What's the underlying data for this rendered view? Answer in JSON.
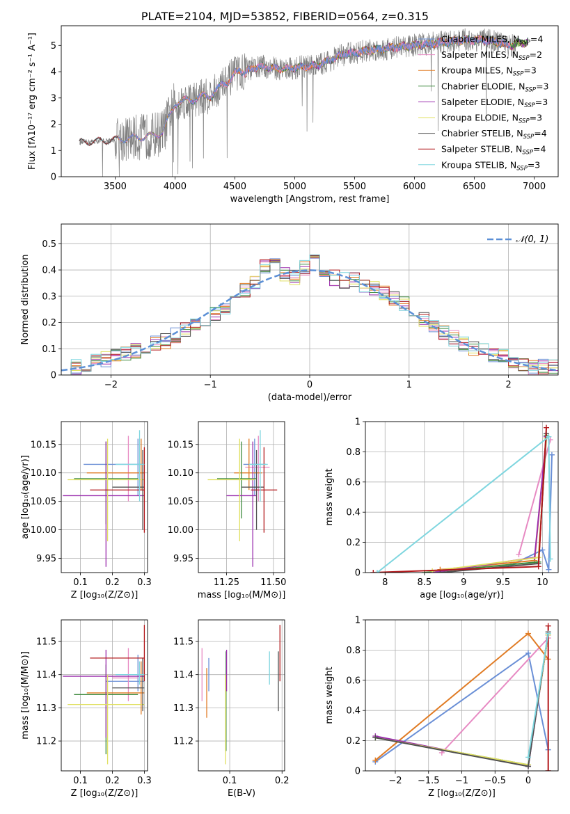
{
  "colors": {
    "Chabrier MILES": "#6a8fd6",
    "Salpeter MILES": "#e78ac3",
    "Kroupa MILES": "#e07b24",
    "Chabrier ELODIE": "#3d8a3d",
    "Salpeter ELODIE": "#9b2fae",
    "Kroupa ELODIE": "#e0e061",
    "Chabrier STELIB": "#505050",
    "Salpeter STELIB": "#b2181b",
    "Kroupa STELIB": "#7fd6df",
    "data": "#808080",
    "normal": "#5b8fd6",
    "grid": "#b0b0b0"
  },
  "chart_data": [
    {
      "id": "spectrum",
      "type": "line",
      "title": "PLATE=2104, MJD=53852, FIBERID=0564, z=0.315",
      "xlabel": "wavelength [Angstrom, rest frame]",
      "ylabel": "Flux [fλ10⁻¹⁷ erg cm⁻² s⁻¹ A⁻¹]",
      "xlim": [
        3050,
        7200
      ],
      "ylim": [
        0,
        5.75
      ],
      "xticks": [
        3500,
        4000,
        4500,
        5000,
        5500,
        6000,
        6500,
        7000
      ],
      "yticks": [
        0,
        1,
        2,
        3,
        4,
        5
      ],
      "grid": false,
      "legend_position": "top-right",
      "legend": [
        {
          "name": "Chabrier MILES",
          "nssp": "4"
        },
        {
          "name": "Salpeter MILES",
          "nssp": "2"
        },
        {
          "name": "Kroupa MILES",
          "nssp": "3"
        },
        {
          "name": "Chabrier ELODIE",
          "nssp": "3"
        },
        {
          "name": "Salpeter ELODIE",
          "nssp": "3"
        },
        {
          "name": "Kroupa ELODIE",
          "nssp": "3"
        },
        {
          "name": "Chabrier STELIB",
          "nssp": "4"
        },
        {
          "name": "Salpeter STELIB",
          "nssp": "4"
        },
        {
          "name": "Kroupa STELIB",
          "nssp": "3"
        }
      ],
      "continuum_x": [
        3200,
        3350,
        3500,
        3700,
        3800,
        3900,
        4000,
        4100,
        4300,
        4500,
        4700,
        4900,
        5000,
        5200,
        5400,
        5600,
        5800,
        6000,
        6200,
        6400,
        6600,
        6800,
        7000
      ],
      "continuum_y": [
        1.3,
        1.35,
        1.4,
        1.5,
        1.55,
        1.7,
        2.8,
        2.9,
        3.1,
        3.9,
        4.2,
        4.1,
        4.15,
        4.25,
        4.65,
        4.8,
        4.9,
        5.0,
        5.1,
        5.2,
        5.2,
        5.0,
        5.2
      ]
    },
    {
      "id": "residuals",
      "type": "line",
      "xlabel": "(data-model)/error",
      "ylabel": "Normed distribution",
      "xlim": [
        -2.5,
        2.5
      ],
      "ylim": [
        0,
        0.575
      ],
      "xticks": [
        -2,
        -1,
        0,
        1,
        2
      ],
      "yticks": [
        0.0,
        0.1,
        0.2,
        0.3,
        0.4,
        0.5
      ],
      "grid": true,
      "legend_position": "top-right",
      "legend": [
        "𝒩(0, 1)"
      ],
      "bin_centers": [
        -2.45,
        -2.35,
        -2.25,
        -2.15,
        -2.05,
        -1.95,
        -1.85,
        -1.75,
        -1.65,
        -1.55,
        -1.45,
        -1.35,
        -1.25,
        -1.15,
        -1.05,
        -0.95,
        -0.85,
        -0.75,
        -0.65,
        -0.55,
        -0.45,
        -0.35,
        -0.25,
        -0.15,
        -0.05,
        0.05,
        0.15,
        0.25,
        0.35,
        0.45,
        0.55,
        0.65,
        0.75,
        0.85,
        0.95,
        1.05,
        1.15,
        1.25,
        1.35,
        1.45,
        1.55,
        1.65,
        1.75,
        1.85,
        1.95,
        2.05,
        2.15,
        2.25,
        2.35,
        2.45
      ],
      "hist_values": [
        0.02,
        0.03,
        0.04,
        0.05,
        0.06,
        0.07,
        0.08,
        0.09,
        0.1,
        0.12,
        0.13,
        0.15,
        0.17,
        0.19,
        0.21,
        0.23,
        0.26,
        0.29,
        0.32,
        0.35,
        0.41,
        0.42,
        0.38,
        0.37,
        0.41,
        0.44,
        0.4,
        0.37,
        0.36,
        0.36,
        0.34,
        0.33,
        0.31,
        0.29,
        0.27,
        0.24,
        0.21,
        0.18,
        0.16,
        0.14,
        0.12,
        0.1,
        0.09,
        0.08,
        0.07,
        0.05,
        0.04,
        0.03,
        0.03,
        0.03
      ]
    },
    {
      "id": "age_vs_Z",
      "type": "scatter",
      "xlabel": "Z [log₁₀(Z/Z⊙)]",
      "ylabel": "age  [log₁₀(age/yr)]",
      "xlim": [
        0.04,
        0.31
      ],
      "ylim": [
        9.925,
        10.19
      ],
      "xticks": [
        0.1,
        0.2,
        0.3
      ],
      "yticks": [
        9.95,
        10.0,
        10.05,
        10.1,
        10.15
      ],
      "ytick_labels": [
        "9.95",
        "10.00",
        "10.05",
        "10.10",
        "10.15"
      ],
      "grid": true,
      "points": [
        {
          "name": "Chabrier MILES",
          "x": 0.28,
          "xerr": [
            0.11,
            0.3
          ],
          "y": 10.115,
          "yerr": [
            10.06,
            10.16
          ]
        },
        {
          "name": "Salpeter MILES",
          "x": 0.25,
          "xerr": [
            0.2,
            0.3
          ],
          "y": 10.1,
          "yerr": [
            10.05,
            10.165
          ]
        },
        {
          "name": "Kroupa MILES",
          "x": 0.29,
          "xerr": [
            0.12,
            0.3
          ],
          "y": 10.1,
          "yerr": [
            10.07,
            10.16
          ]
        },
        {
          "name": "Chabrier ELODIE",
          "x": 0.18,
          "xerr": [
            0.08,
            0.28
          ],
          "y": 10.09,
          "yerr": [
            10.01,
            10.155
          ]
        },
        {
          "name": "Salpeter ELODIE",
          "x": 0.18,
          "xerr": [
            0.045,
            0.3
          ],
          "y": 10.06,
          "yerr": [
            9.935,
            10.155
          ]
        },
        {
          "name": "Kroupa ELODIE",
          "x": 0.185,
          "xerr": [
            0.06,
            0.3
          ],
          "y": 10.088,
          "yerr": [
            9.98,
            10.16
          ]
        },
        {
          "name": "Chabrier STELIB",
          "x": 0.295,
          "xerr": [
            0.2,
            0.3
          ],
          "y": 10.075,
          "yerr": [
            10.0,
            10.14
          ]
        },
        {
          "name": "Salpeter STELIB",
          "x": 0.3,
          "xerr": [
            0.13,
            0.3
          ],
          "y": 10.07,
          "yerr": [
            9.995,
            10.145
          ]
        },
        {
          "name": "Kroupa STELIB",
          "x": 0.285,
          "xerr": [
            0.21,
            0.3
          ],
          "y": 10.115,
          "yerr": [
            10.05,
            10.175
          ]
        }
      ]
    },
    {
      "id": "age_vs_mass",
      "type": "scatter",
      "xlabel": "mass [log₁₀(M/M⊙)]",
      "xlim": [
        11.1,
        11.56
      ],
      "ylim": [
        9.925,
        10.19
      ],
      "xticks": [
        11.25,
        11.5
      ],
      "xtick_labels": [
        "11.25",
        "11.50"
      ],
      "yticks": [
        9.95,
        10.0,
        10.05,
        10.1,
        10.15
      ],
      "ytick_labels": [
        "9.95",
        "10.00",
        "10.05",
        "10.10",
        "10.15"
      ],
      "grid": true,
      "points": [
        {
          "name": "Chabrier MILES",
          "x": 11.4,
          "xerr": [
            11.34,
            11.46
          ],
          "y": 10.115,
          "yerr": [
            10.06,
            10.16
          ]
        },
        {
          "name": "Salpeter MILES",
          "x": 11.42,
          "xerr": [
            11.35,
            11.48
          ],
          "y": 10.11,
          "yerr": [
            10.05,
            10.165
          ]
        },
        {
          "name": "Kroupa MILES",
          "x": 11.37,
          "xerr": [
            11.29,
            11.44
          ],
          "y": 10.1,
          "yerr": [
            10.07,
            10.16
          ]
        },
        {
          "name": "Chabrier ELODIE",
          "x": 11.33,
          "xerr": [
            11.2,
            11.41
          ],
          "y": 10.09,
          "yerr": [
            10.02,
            10.155
          ]
        },
        {
          "name": "Salpeter ELODIE",
          "x": 11.39,
          "xerr": [
            11.25,
            11.41
          ],
          "y": 10.06,
          "yerr": [
            9.935,
            10.155
          ]
        },
        {
          "name": "Kroupa ELODIE",
          "x": 11.32,
          "xerr": [
            11.15,
            11.4
          ],
          "y": 10.088,
          "yerr": [
            9.98,
            10.16
          ]
        },
        {
          "name": "Chabrier STELIB",
          "x": 11.41,
          "xerr": [
            11.33,
            11.45
          ],
          "y": 10.075,
          "yerr": [
            10.0,
            10.14
          ]
        },
        {
          "name": "Salpeter STELIB",
          "x": 11.45,
          "xerr": [
            11.38,
            11.52
          ],
          "y": 10.07,
          "yerr": [
            9.995,
            10.145
          ]
        },
        {
          "name": "Kroupa STELIB",
          "x": 11.43,
          "xerr": [
            11.37,
            11.47
          ],
          "y": 10.115,
          "yerr": [
            10.05,
            10.175
          ]
        }
      ]
    },
    {
      "id": "mass_weight_vs_age",
      "type": "line",
      "xlabel": "age  [log₁₀(age/yr)]",
      "ylabel": "mass weight",
      "xlim": [
        7.75,
        10.2
      ],
      "ylim": [
        0,
        1.0
      ],
      "xticks": [
        8.0,
        8.5,
        9.0,
        9.5,
        10.0
      ],
      "yticks": [
        0.0,
        0.2,
        0.4,
        0.6,
        0.8,
        1.0
      ],
      "grid": true,
      "series": [
        {
          "name": "Chabrier MILES",
          "x": [
            9.6,
            10.0,
            10.08,
            10.12
          ],
          "y": [
            0.05,
            0.15,
            0.02,
            0.78
          ]
        },
        {
          "name": "Salpeter MILES",
          "x": [
            9.7,
            10.1
          ],
          "y": [
            0.12,
            0.88
          ]
        },
        {
          "name": "Kroupa MILES",
          "x": [
            8.7,
            9.9,
            10.05
          ],
          "y": [
            0.02,
            0.08,
            0.9
          ]
        },
        {
          "name": "Chabrier ELODIE",
          "x": [
            8.5,
            9.95,
            10.05
          ],
          "y": [
            0.0,
            0.07,
            0.91
          ]
        },
        {
          "name": "Salpeter ELODIE",
          "x": [
            8.6,
            9.9,
            10.05
          ],
          "y": [
            0.0,
            0.1,
            0.9
          ]
        },
        {
          "name": "Kroupa ELODIE",
          "x": [
            8.6,
            9.95,
            10.05
          ],
          "y": [
            0.01,
            0.1,
            0.89
          ]
        },
        {
          "name": "Chabrier STELIB",
          "x": [
            8.7,
            9.95,
            10.05
          ],
          "y": [
            0.0,
            0.06,
            0.92
          ]
        },
        {
          "name": "Salpeter STELIB",
          "x": [
            7.85,
            9.95,
            10.05
          ],
          "y": [
            0.0,
            0.04,
            0.96
          ]
        },
        {
          "name": "Kroupa STELIB",
          "x": [
            7.9,
            10.08,
            10.1
          ],
          "y": [
            0.0,
            0.9,
            0.09
          ]
        }
      ]
    },
    {
      "id": "mass_vs_Z",
      "type": "scatter",
      "xlabel": "Z [log₁₀(Z/Z⊙)]",
      "ylabel": "mass [log₁₀(M/M⊙)]",
      "xlim": [
        0.04,
        0.31
      ],
      "ylim": [
        11.11,
        11.565
      ],
      "xticks": [
        0.1,
        0.2,
        0.3
      ],
      "yticks": [
        11.2,
        11.3,
        11.4,
        11.5
      ],
      "grid": true,
      "points": [
        {
          "name": "Chabrier MILES",
          "x": 0.28,
          "xerr": [
            0.18,
            0.3
          ],
          "y": 11.38,
          "yerr": [
            11.35,
            11.46
          ]
        },
        {
          "name": "Salpeter MILES",
          "x": 0.25,
          "xerr": [
            0.2,
            0.28
          ],
          "y": 11.39,
          "yerr": [
            11.32,
            11.48
          ]
        },
        {
          "name": "Kroupa MILES",
          "x": 0.29,
          "xerr": [
            0.12,
            0.3
          ],
          "y": 11.345,
          "yerr": [
            11.28,
            11.44
          ]
        },
        {
          "name": "Chabrier ELODIE",
          "x": 0.18,
          "xerr": [
            0.08,
            0.28
          ],
          "y": 11.34,
          "yerr": [
            11.16,
            11.43
          ]
        },
        {
          "name": "Salpeter ELODIE",
          "x": 0.18,
          "xerr": [
            0.045,
            0.3
          ],
          "y": 11.395,
          "yerr": [
            11.21,
            11.475
          ]
        },
        {
          "name": "Kroupa ELODIE",
          "x": 0.185,
          "xerr": [
            0.06,
            0.3
          ],
          "y": 11.31,
          "yerr": [
            11.13,
            11.4
          ]
        },
        {
          "name": "Chabrier STELIB",
          "x": 0.295,
          "xerr": [
            0.2,
            0.3
          ],
          "y": 11.36,
          "yerr": [
            11.29,
            11.45
          ]
        },
        {
          "name": "Salpeter STELIB",
          "x": 0.3,
          "xerr": [
            0.13,
            0.3
          ],
          "y": 11.45,
          "yerr": [
            11.38,
            11.55
          ]
        },
        {
          "name": "Kroupa STELIB",
          "x": 0.285,
          "xerr": [
            0.21,
            0.3
          ],
          "y": 11.4,
          "yerr": [
            11.37,
            11.44
          ]
        }
      ]
    },
    {
      "id": "mass_vs_ebv",
      "type": "scatter",
      "xlabel": "E(B-V)",
      "xlim": [
        0.04,
        0.205
      ],
      "ylim": [
        11.11,
        11.565
      ],
      "xticks": [
        0.1,
        0.2
      ],
      "yticks": [
        11.2,
        11.3,
        11.4,
        11.5
      ],
      "grid": true,
      "points": [
        {
          "name": "Chabrier MILES",
          "x": 0.06,
          "y": 11.4,
          "yerr": [
            11.35,
            11.45
          ]
        },
        {
          "name": "Salpeter MILES",
          "x": 0.047,
          "y": 11.4,
          "yerr": [
            11.32,
            11.48
          ]
        },
        {
          "name": "Kroupa MILES",
          "x": 0.056,
          "y": 11.345,
          "yerr": [
            11.27,
            11.42
          ]
        },
        {
          "name": "Chabrier ELODIE",
          "x": 0.093,
          "y": 11.34,
          "yerr": [
            11.17,
            11.47
          ]
        },
        {
          "name": "Salpeter ELODIE",
          "x": 0.094,
          "y": 11.4,
          "yerr": [
            11.35,
            11.475
          ]
        },
        {
          "name": "Kroupa ELODIE",
          "x": 0.092,
          "y": 11.31,
          "yerr": [
            11.13,
            11.4
          ]
        },
        {
          "name": "Chabrier STELIB",
          "x": 0.193,
          "y": 11.36,
          "yerr": [
            11.29,
            11.47
          ]
        },
        {
          "name": "Salpeter STELIB",
          "x": 0.196,
          "y": 11.45,
          "yerr": [
            11.38,
            11.55
          ]
        },
        {
          "name": "Kroupa STELIB",
          "x": 0.176,
          "y": 11.42,
          "yerr": [
            11.37,
            11.47
          ]
        }
      ]
    },
    {
      "id": "mass_weight_vs_Z",
      "type": "line",
      "xlabel": "Z [log₁₀(Z/Z⊙)]",
      "ylabel": "mass weight",
      "xlim": [
        -2.45,
        0.45
      ],
      "ylim": [
        0,
        1.0
      ],
      "xticks": [
        -2.0,
        -1.5,
        -1.0,
        -0.5,
        0.0
      ],
      "yticks": [
        0.0,
        0.2,
        0.4,
        0.6,
        0.8,
        1.0
      ],
      "grid": true,
      "series": [
        {
          "name": "Chabrier MILES",
          "x": [
            -2.3,
            0.0,
            0.3
          ],
          "y": [
            0.06,
            0.78,
            0.14
          ]
        },
        {
          "name": "Salpeter MILES",
          "x": [
            -1.3,
            0.3
          ],
          "y": [
            0.12,
            0.88
          ]
        },
        {
          "name": "Kroupa MILES",
          "x": [
            -2.3,
            0.0,
            0.3
          ],
          "y": [
            0.07,
            0.91,
            0.74
          ]
        },
        {
          "name": "Chabrier ELODIE",
          "x": [
            -2.3,
            0.0,
            0.3
          ],
          "y": [
            0.22,
            0.04,
            0.9
          ]
        },
        {
          "name": "Salpeter ELODIE",
          "x": [
            -2.3,
            0.0,
            0.3
          ],
          "y": [
            0.23,
            0.03,
            0.9
          ]
        },
        {
          "name": "Kroupa ELODIE",
          "x": [
            -2.3,
            0.0,
            0.3
          ],
          "y": [
            0.22,
            0.04,
            0.9
          ]
        },
        {
          "name": "Chabrier STELIB",
          "x": [
            -2.3,
            0.0,
            0.3
          ],
          "y": [
            0.22,
            0.03,
            0.92
          ]
        },
        {
          "name": "Salpeter STELIB",
          "x": [
            0.3,
            0.3
          ],
          "y": [
            0.0,
            0.96
          ]
        },
        {
          "name": "Kroupa STELIB",
          "x": [
            0.0,
            0.3
          ],
          "y": [
            0.09,
            0.91
          ]
        }
      ]
    }
  ]
}
